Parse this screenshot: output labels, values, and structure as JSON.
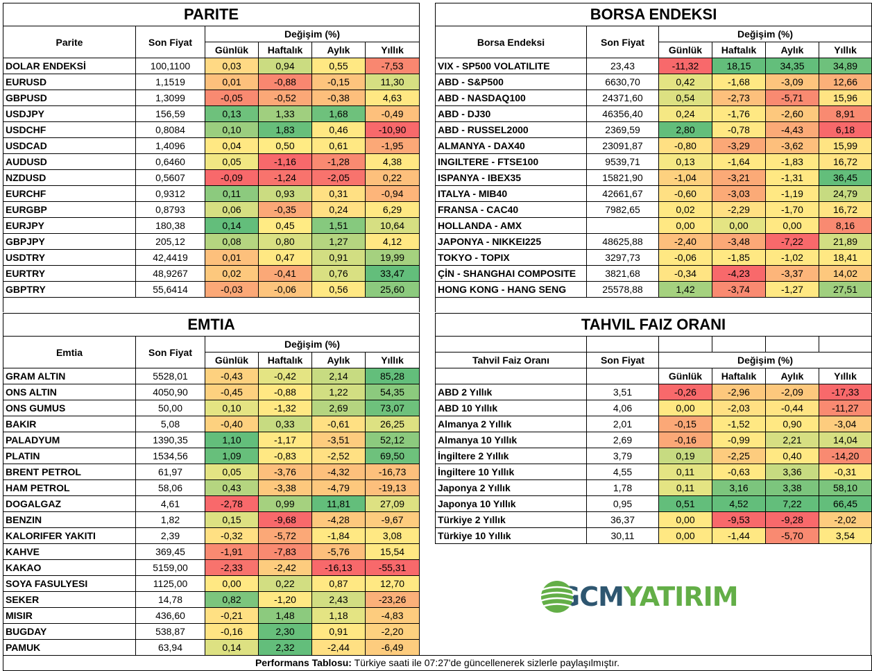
{
  "colors": {
    "red": "#F8696B",
    "green": "#63BE7B",
    "yellow": "#FFEB84",
    "logo_blue": "#2E5670",
    "logo_green": "#63AE47"
  },
  "common": {
    "son_fiyat": "Son Fiyat",
    "degisim": "Değişim (%)",
    "gunluk": "Günlük",
    "haftalik": "Haftalık",
    "aylik": "Aylık",
    "yillik": "Yıllık"
  },
  "parite": {
    "title": "PARITE",
    "col_name": "Parite",
    "rows": [
      {
        "name": "DOLAR ENDEKSİ",
        "price": "100,1100",
        "vals": [
          "0,03",
          "0,94",
          "0,55",
          "-7,53"
        ],
        "cols": [
          "#FFD984",
          "#CBDC81",
          "#FFE883",
          "#F98770"
        ]
      },
      {
        "name": "EURUSD",
        "price": "1,1519",
        "vals": [
          "0,01",
          "-0,88",
          "-0,15",
          "11,30"
        ],
        "cols": [
          "#FDC07C",
          "#F98770",
          "#FDC47D",
          "#D6DF82"
        ]
      },
      {
        "name": "GBPUSD",
        "price": "1,3099",
        "vals": [
          "-0,05",
          "-0,52",
          "-0,38",
          "4,63"
        ],
        "cols": [
          "#F98A71",
          "#FBA877",
          "#FDBF7C",
          "#FFE883"
        ]
      },
      {
        "name": "USDJPY",
        "price": "156,59",
        "vals": [
          "0,13",
          "1,33",
          "1,68",
          "-0,49"
        ],
        "cols": [
          "#6EC17C",
          "#A0CF7F",
          "#6EC17C",
          "#FDC07C"
        ]
      },
      {
        "name": "USDCHF",
        "price": "0,8084",
        "vals": [
          "0,10",
          "1,83",
          "0,46",
          "-10,90"
        ],
        "cols": [
          "#9BCE7F",
          "#67BF7B",
          "#FFE883",
          "#F8696B"
        ]
      },
      {
        "name": "USDCAD",
        "price": "1,4096",
        "vals": [
          "0,04",
          "0,50",
          "0,61",
          "-1,95"
        ],
        "cols": [
          "#FFE883",
          "#FFEB84",
          "#FFE883",
          "#FBA877"
        ]
      },
      {
        "name": "AUDUSD",
        "price": "0,6460",
        "vals": [
          "0,05",
          "-1,16",
          "-1,28",
          "4,38"
        ],
        "cols": [
          "#F1E783",
          "#F8696B",
          "#F98A71",
          "#FFE883"
        ]
      },
      {
        "name": "NZDUSD",
        "price": "0,5607",
        "vals": [
          "-0,09",
          "-1,24",
          "-2,05",
          "0,22"
        ],
        "cols": [
          "#F8696B",
          "#F8736D",
          "#F8736D",
          "#FDC07C"
        ]
      },
      {
        "name": "EURCHF",
        "price": "0,9312",
        "vals": [
          "0,11",
          "0,93",
          "0,31",
          "-0,94"
        ],
        "cols": [
          "#8CCA7E",
          "#CBDC81",
          "#FFE083",
          "#FDB57A"
        ]
      },
      {
        "name": "EURGBP",
        "price": "0,8793",
        "vals": [
          "0,06",
          "-0,35",
          "0,24",
          "6,29"
        ],
        "cols": [
          "#D6DF82",
          "#FBA877",
          "#FFE083",
          "#FFE883"
        ]
      },
      {
        "name": "EURJPY",
        "price": "180,38",
        "vals": [
          "0,14",
          "0,45",
          "1,51",
          "10,64"
        ],
        "cols": [
          "#63BE7B",
          "#FFEB84",
          "#86C97E",
          "#D6DF82"
        ]
      },
      {
        "name": "GBPJPY",
        "price": "205,12",
        "vals": [
          "0,08",
          "0,80",
          "1,27",
          "4,12"
        ],
        "cols": [
          "#B5D580",
          "#D9E082",
          "#B5D580",
          "#FFE883"
        ]
      },
      {
        "name": "USDTRY",
        "price": "42,4419",
        "vals": [
          "0,01",
          "0,47",
          "0,91",
          "19,99"
        ],
        "cols": [
          "#FDC07C",
          "#FFE883",
          "#D2DE82",
          "#A5D17F"
        ]
      },
      {
        "name": "EURTRY",
        "price": "48,9267",
        "vals": [
          "0,02",
          "-0,41",
          "0,76",
          "33,47"
        ],
        "cols": [
          "#FDC87D",
          "#FBA877",
          "#D9E082",
          "#63BE7B"
        ]
      },
      {
        "name": "GBPTRY",
        "price": "55,6414",
        "vals": [
          "-0,03",
          "-0,06",
          "0,56",
          "25,60"
        ],
        "cols": [
          "#FBA877",
          "#FDC47D",
          "#FFE883",
          "#8CCA7E"
        ]
      }
    ]
  },
  "borsa": {
    "title": "BORSA ENDEKSI",
    "col_name": "Borsa Endeksi",
    "rows": [
      {
        "name": "VIX  - SP500 VOLATILITE",
        "price": "23,43",
        "vals": [
          "-11,32",
          "18,15",
          "34,35",
          "34,89"
        ],
        "cols": [
          "#F8696B",
          "#63BE7B",
          "#63BE7B",
          "#6EC17C"
        ]
      },
      {
        "name": "ABD - S&P500",
        "price": "6630,70",
        "vals": [
          "0,42",
          "-1,68",
          "-3,09",
          "12,66"
        ],
        "cols": [
          "#E4E483",
          "#FFE883",
          "#FDC47D",
          "#FBB079"
        ]
      },
      {
        "name": "ABD - NASDAQ100",
        "price": "24371,60",
        "vals": [
          "0,54",
          "-2,73",
          "-5,71",
          "15,96"
        ],
        "cols": [
          "#DDE182",
          "#FDC07C",
          "#F98A71",
          "#FFE483"
        ]
      },
      {
        "name": "ABD - DJ30",
        "price": "46356,40",
        "vals": [
          "0,24",
          "-1,76",
          "-2,60",
          "8,91"
        ],
        "cols": [
          "#F5E884",
          "#FFE883",
          "#FDC87D",
          "#F98A71"
        ]
      },
      {
        "name": "ABD - RUSSEL2000",
        "price": "2369,59",
        "vals": [
          "2,80",
          "-0,78",
          "-4,43",
          "6,18"
        ],
        "cols": [
          "#63BE7B",
          "#FFE883",
          "#FBAA77",
          "#F8696B"
        ]
      },
      {
        "name": "ALMANYA - DAX40",
        "price": "23091,87",
        "vals": [
          "-0,80",
          "-3,29",
          "-3,62",
          "15,99"
        ],
        "cols": [
          "#FFE083",
          "#FBA877",
          "#FDBF7C",
          "#FFE483"
        ]
      },
      {
        "name": "INGILTERE - FTSE100",
        "price": "9539,71",
        "vals": [
          "0,13",
          "-1,64",
          "-1,83",
          "16,72"
        ],
        "cols": [
          "#F5E884",
          "#FFE883",
          "#FFE883",
          "#FFE483"
        ]
      },
      {
        "name": "ISPANYA - IBEX35",
        "price": "15821,90",
        "vals": [
          "-1,04",
          "-3,21",
          "-1,31",
          "36,45"
        ],
        "cols": [
          "#FDD17F",
          "#FBAA77",
          "#FFE883",
          "#63BE7B"
        ]
      },
      {
        "name": "ITALYA - MIB40",
        "price": "42661,67",
        "vals": [
          "-0,60",
          "-3,03",
          "-1,19",
          "24,79"
        ],
        "cols": [
          "#FFE083",
          "#FBAA77",
          "#FFE883",
          "#C7DB81"
        ]
      },
      {
        "name": "FRANSA - CAC40",
        "price": "7982,65",
        "vals": [
          "0,02",
          "-2,29",
          "-1,70",
          "16,72"
        ],
        "cols": [
          "#FFE883",
          "#FFE083",
          "#FFE883",
          "#FFE483"
        ]
      },
      {
        "name": "HOLLANDA - AMX",
        "price": "",
        "vals": [
          "0,00",
          "0,00",
          "0,00",
          "8,16"
        ],
        "cols": [
          "#FFE883",
          "#E4E483",
          "#FFE883",
          "#F98A71"
        ]
      },
      {
        "name": "JAPONYA - NIKKEI225",
        "price": "48625,88",
        "vals": [
          "-2,40",
          "-3,48",
          "-7,22",
          "21,89"
        ],
        "cols": [
          "#FDBF7C",
          "#FBA877",
          "#F8696B",
          "#D2DE82"
        ]
      },
      {
        "name": "TOKYO - TOPIX",
        "price": "3297,73",
        "vals": [
          "-0,06",
          "-1,85",
          "-1,02",
          "18,41"
        ],
        "cols": [
          "#FFE883",
          "#FFE883",
          "#FFE883",
          "#FFE883"
        ]
      },
      {
        "name": "ÇİN - SHANGHAI COMPOSITE",
        "price": "3821,68",
        "vals": [
          "-0,34",
          "-4,23",
          "-3,37",
          "14,02"
        ],
        "cols": [
          "#FFE483",
          "#F8696B",
          "#FDB57A",
          "#FDC87D"
        ]
      },
      {
        "name": "HONG KONG - HANG SENG",
        "price": "25578,88",
        "vals": [
          "1,42",
          "-3,74",
          "-1,27",
          "27,51"
        ],
        "cols": [
          "#A5D17F",
          "#F98A71",
          "#FFE883",
          "#A0CF7F"
        ]
      }
    ]
  },
  "emtia": {
    "title": "EMTIA",
    "col_name": "Emtia",
    "rows": [
      {
        "name": "GRAM ALTIN",
        "price": "5528,01",
        "vals": [
          "-0,43",
          "-0,42",
          "2,14",
          "85,28"
        ],
        "cols": [
          "#FDD17F",
          "#E4E483",
          "#C7DB81",
          "#63BE7B"
        ]
      },
      {
        "name": "ONS ALTIN",
        "price": "4050,90",
        "vals": [
          "-0,45",
          "-0,88",
          "1,22",
          "54,35"
        ],
        "cols": [
          "#FDD17F",
          "#FFE883",
          "#D2DE82",
          "#8CCA7E"
        ]
      },
      {
        "name": "ONS GUMUS",
        "price": "50,00",
        "vals": [
          "0,10",
          "-1,32",
          "2,69",
          "73,07"
        ],
        "cols": [
          "#E4E483",
          "#FFE883",
          "#B5D580",
          "#6EC17C"
        ]
      },
      {
        "name": "BAKIR",
        "price": "5,08",
        "vals": [
          "-0,40",
          "0,33",
          "-0,61",
          "26,25"
        ],
        "cols": [
          "#FDD17F",
          "#C7DB81",
          "#FFE083",
          "#DDE182"
        ]
      },
      {
        "name": "PALADYUM",
        "price": "1390,35",
        "vals": [
          "1,10",
          "-1,17",
          "-3,51",
          "52,12"
        ],
        "cols": [
          "#63BE7B",
          "#FFE883",
          "#FDCC7E",
          "#8CCA7E"
        ]
      },
      {
        "name": "PLATIN",
        "price": "1534,56",
        "vals": [
          "1,09",
          "-0,83",
          "-2,52",
          "69,50"
        ],
        "cols": [
          "#67BF7B",
          "#FFE883",
          "#FFE083",
          "#6EC17C"
        ]
      },
      {
        "name": "BRENT PETROL",
        "price": "61,97",
        "vals": [
          "0,05",
          "-3,76",
          "-4,32",
          "-16,73"
        ],
        "cols": [
          "#E4E483",
          "#FDBF7C",
          "#FDC07C",
          "#FDC07C"
        ]
      },
      {
        "name": "HAM PETROL",
        "price": "58,06",
        "vals": [
          "0,43",
          "-3,38",
          "-4,79",
          "-19,13"
        ],
        "cols": [
          "#B5D580",
          "#FDC87D",
          "#FDC87D",
          "#FDBF7C"
        ]
      },
      {
        "name": "DOGALGAZ",
        "price": "4,61",
        "vals": [
          "-2,78",
          "0,99",
          "11,81",
          "27,09"
        ],
        "cols": [
          "#F8696B",
          "#A5D17F",
          "#63BE7B",
          "#DDE182"
        ]
      },
      {
        "name": "BENZIN",
        "price": "1,82",
        "vals": [
          "0,15",
          "-9,68",
          "-4,28",
          "-9,67"
        ],
        "cols": [
          "#DDE182",
          "#F8696B",
          "#FDC87D",
          "#FDCC7E"
        ]
      },
      {
        "name": "KALORIFER YAKITI",
        "price": "2,39",
        "vals": [
          "-0,32",
          "-5,72",
          "-1,84",
          "3,08"
        ],
        "cols": [
          "#FFE083",
          "#FBA877",
          "#FFE883",
          "#FFE883"
        ]
      },
      {
        "name": "KAHVE",
        "price": "369,45",
        "vals": [
          "-1,91",
          "-7,83",
          "-5,76",
          "15,54"
        ],
        "cols": [
          "#F98A71",
          "#F98A71",
          "#FDC07C",
          "#FFE883"
        ]
      },
      {
        "name": "KAKAO",
        "price": "5159,00",
        "vals": [
          "-2,33",
          "-2,42",
          "-16,13",
          "-55,31"
        ],
        "cols": [
          "#F8736D",
          "#FDCC7E",
          "#F8696B",
          "#F8696B"
        ]
      },
      {
        "name": "SOYA FASULYESI",
        "price": "1125,00",
        "vals": [
          "0,00",
          "0,22",
          "0,87",
          "12,70"
        ],
        "cols": [
          "#FFE883",
          "#D2DE82",
          "#FFE883",
          "#FFE883"
        ]
      },
      {
        "name": "SEKER",
        "price": "14,78",
        "vals": [
          "0,82",
          "-1,20",
          "2,43",
          "-23,26"
        ],
        "cols": [
          "#7CC57D",
          "#FFE883",
          "#D2DE82",
          "#FBB079"
        ]
      },
      {
        "name": "MISIR",
        "price": "436,60",
        "vals": [
          "-0,21",
          "1,48",
          "1,18",
          "-4,83"
        ],
        "cols": [
          "#FFE083",
          "#8CCA7E",
          "#E4E483",
          "#FDCC7E"
        ]
      },
      {
        "name": "BUGDAY",
        "price": "538,87",
        "vals": [
          "-0,16",
          "2,30",
          "0,91",
          "-2,20"
        ],
        "cols": [
          "#FFE483",
          "#67BF7B",
          "#FFE883",
          "#FDD17F"
        ]
      },
      {
        "name": "PAMUK",
        "price": "63,94",
        "vals": [
          "0,14",
          "2,32",
          "-2,44",
          "-6,49"
        ],
        "cols": [
          "#DDE182",
          "#63BE7B",
          "#FFE083",
          "#FDCC7E"
        ]
      }
    ]
  },
  "tahvil": {
    "title": "TAHVIL FAIZ ORANI",
    "col_name": "Tahvil Faiz Oranı",
    "rows": [
      {
        "name": "ABD 2 Yıllık",
        "price": "3,51",
        "vals": [
          "-0,26",
          "-2,96",
          "-2,09",
          "-17,33"
        ],
        "cols": [
          "#F8696B",
          "#FDC87D",
          "#FDC87D",
          "#F8696B"
        ]
      },
      {
        "name": "ABD 10 Yıllık",
        "price": "4,06",
        "vals": [
          "0,00",
          "-2,03",
          "-0,44",
          "-11,27"
        ],
        "cols": [
          "#FFE883",
          "#FFE083",
          "#FFE483",
          "#F98A71"
        ]
      },
      {
        "name": "Almanya 2 Yıllık",
        "price": "2,01",
        "vals": [
          "-0,15",
          "-1,52",
          "0,90",
          "-3,04"
        ],
        "cols": [
          "#FBA877",
          "#FFE883",
          "#FFE883",
          "#FDCC7E"
        ]
      },
      {
        "name": "Almanya 10 Yıllık",
        "price": "2,69",
        "vals": [
          "-0,16",
          "-0,99",
          "2,21",
          "14,04"
        ],
        "cols": [
          "#FBA877",
          "#FFE883",
          "#D6DF82",
          "#D6DF82"
        ]
      },
      {
        "name": "İngiltere 2 Yıllık",
        "price": "3,79",
        "vals": [
          "0,19",
          "-2,25",
          "0,40",
          "-14,20"
        ],
        "cols": [
          "#C7DB81",
          "#FDCC7E",
          "#FFE883",
          "#F98A71"
        ]
      },
      {
        "name": "İngiltere 10 Yıllık",
        "price": "4,55",
        "vals": [
          "0,11",
          "-0,63",
          "3,36",
          "-0,31"
        ],
        "cols": [
          "#E4E483",
          "#FFE883",
          "#C7DB81",
          "#FFE883"
        ]
      },
      {
        "name": "Japonya 2 Yıllık",
        "price": "1,78",
        "vals": [
          "0,11",
          "3,16",
          "3,38",
          "58,10"
        ],
        "cols": [
          "#E4E483",
          "#7CC57D",
          "#7CC57D",
          "#7CC57D"
        ]
      },
      {
        "name": "Japonya 10 Yıllık",
        "price": "0,95",
        "vals": [
          "0,51",
          "4,52",
          "7,22",
          "66,45"
        ],
        "cols": [
          "#63BE7B",
          "#63BE7B",
          "#63BE7B",
          "#63BE7B"
        ]
      },
      {
        "name": "Türkiye 2 Yıllık",
        "price": "36,37",
        "vals": [
          "0,00",
          "-9,53",
          "-9,28",
          "-2,02"
        ],
        "cols": [
          "#FFE883",
          "#F8696B",
          "#F8696B",
          "#FDCC7E"
        ]
      },
      {
        "name": "Türkiye 10 Yıllık",
        "price": "30,11",
        "vals": [
          "0,00",
          "-1,44",
          "-5,70",
          "3,54"
        ],
        "cols": [
          "#FFE883",
          "#FFE883",
          "#F98A71",
          "#FFE883"
        ]
      }
    ]
  },
  "logo": {
    "part1": "GCM",
    "part2": "YATIRIM"
  },
  "footer": {
    "label": "Performans Tablosu:",
    "text": " Türkiye saati ile 07:27'de güncellenerek sizlerle paylaşılmıştır."
  }
}
